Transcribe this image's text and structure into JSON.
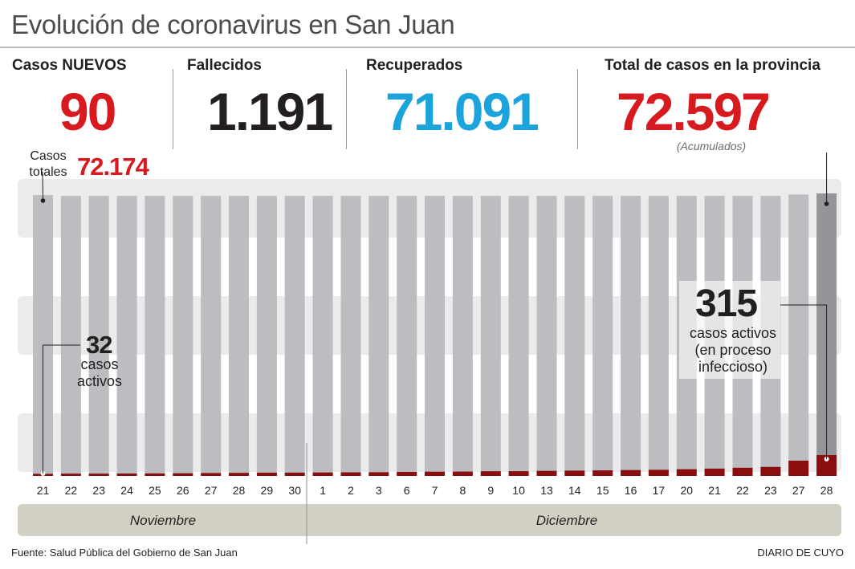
{
  "title": "Evolución de coronavirus en San Juan",
  "stats": {
    "nuevos_label": "Casos NUEVOS",
    "nuevos_value": "90",
    "fallecidos_label": "Fallecidos",
    "fallecidos_value": "1.191",
    "recuperados_label": "Recuperados",
    "recuperados_value": "71.091",
    "total_label": "Total de casos en la provincia",
    "total_value": "72.597",
    "total_note": "(Acumulados)",
    "casos_totales_label_1": "Casos",
    "casos_totales_label_2": "totales",
    "casos_totales_value": "72.174"
  },
  "annotations": {
    "left_value": "32",
    "left_label_1": "casos",
    "left_label_2": "activos",
    "right_value": "315",
    "right_label_1": "casos activos",
    "right_label_2": "(en proceso",
    "right_label_3": "infeccioso)"
  },
  "months": {
    "november": "Noviembre",
    "december": "Diciembre"
  },
  "footer": {
    "source": "Fuente: Salud Pública del Gobierno de San Juan",
    "brand": "DIARIO DE CUYO"
  },
  "colors": {
    "total_bar": "#bcbdc0",
    "total_bar_last": "#939598",
    "active_bar": "#8b0e0e",
    "band": "#ebebeb",
    "month_bar": "#d2d0c3",
    "red": "#d71920",
    "blue": "#1ba3dc"
  },
  "chart_data": {
    "type": "bar",
    "categories": [
      "21",
      "22",
      "23",
      "24",
      "25",
      "26",
      "27",
      "28",
      "29",
      "30",
      "1",
      "2",
      "3",
      "6",
      "7",
      "8",
      "9",
      "10",
      "13",
      "14",
      "15",
      "16",
      "17",
      "20",
      "21",
      "22",
      "23",
      "27",
      "28"
    ],
    "series": [
      {
        "values": [
          72174,
          71950,
          71950,
          71950,
          71950,
          71950,
          71950,
          71950,
          71950,
          71950,
          71950,
          71950,
          71950,
          71950,
          71950,
          71950,
          71950,
          71950,
          71950,
          71950,
          71950,
          71950,
          71950,
          71950,
          71950,
          71950,
          71950,
          72300,
          72597
        ]
      },
      {
        "values": [
          32,
          34,
          34,
          36,
          38,
          40,
          44,
          46,
          48,
          50,
          52,
          54,
          56,
          60,
          64,
          66,
          70,
          72,
          76,
          80,
          84,
          88,
          92,
          100,
          110,
          124,
          136,
          230,
          315
        ]
      }
    ],
    "ylim": [
      0,
      72597
    ]
  }
}
